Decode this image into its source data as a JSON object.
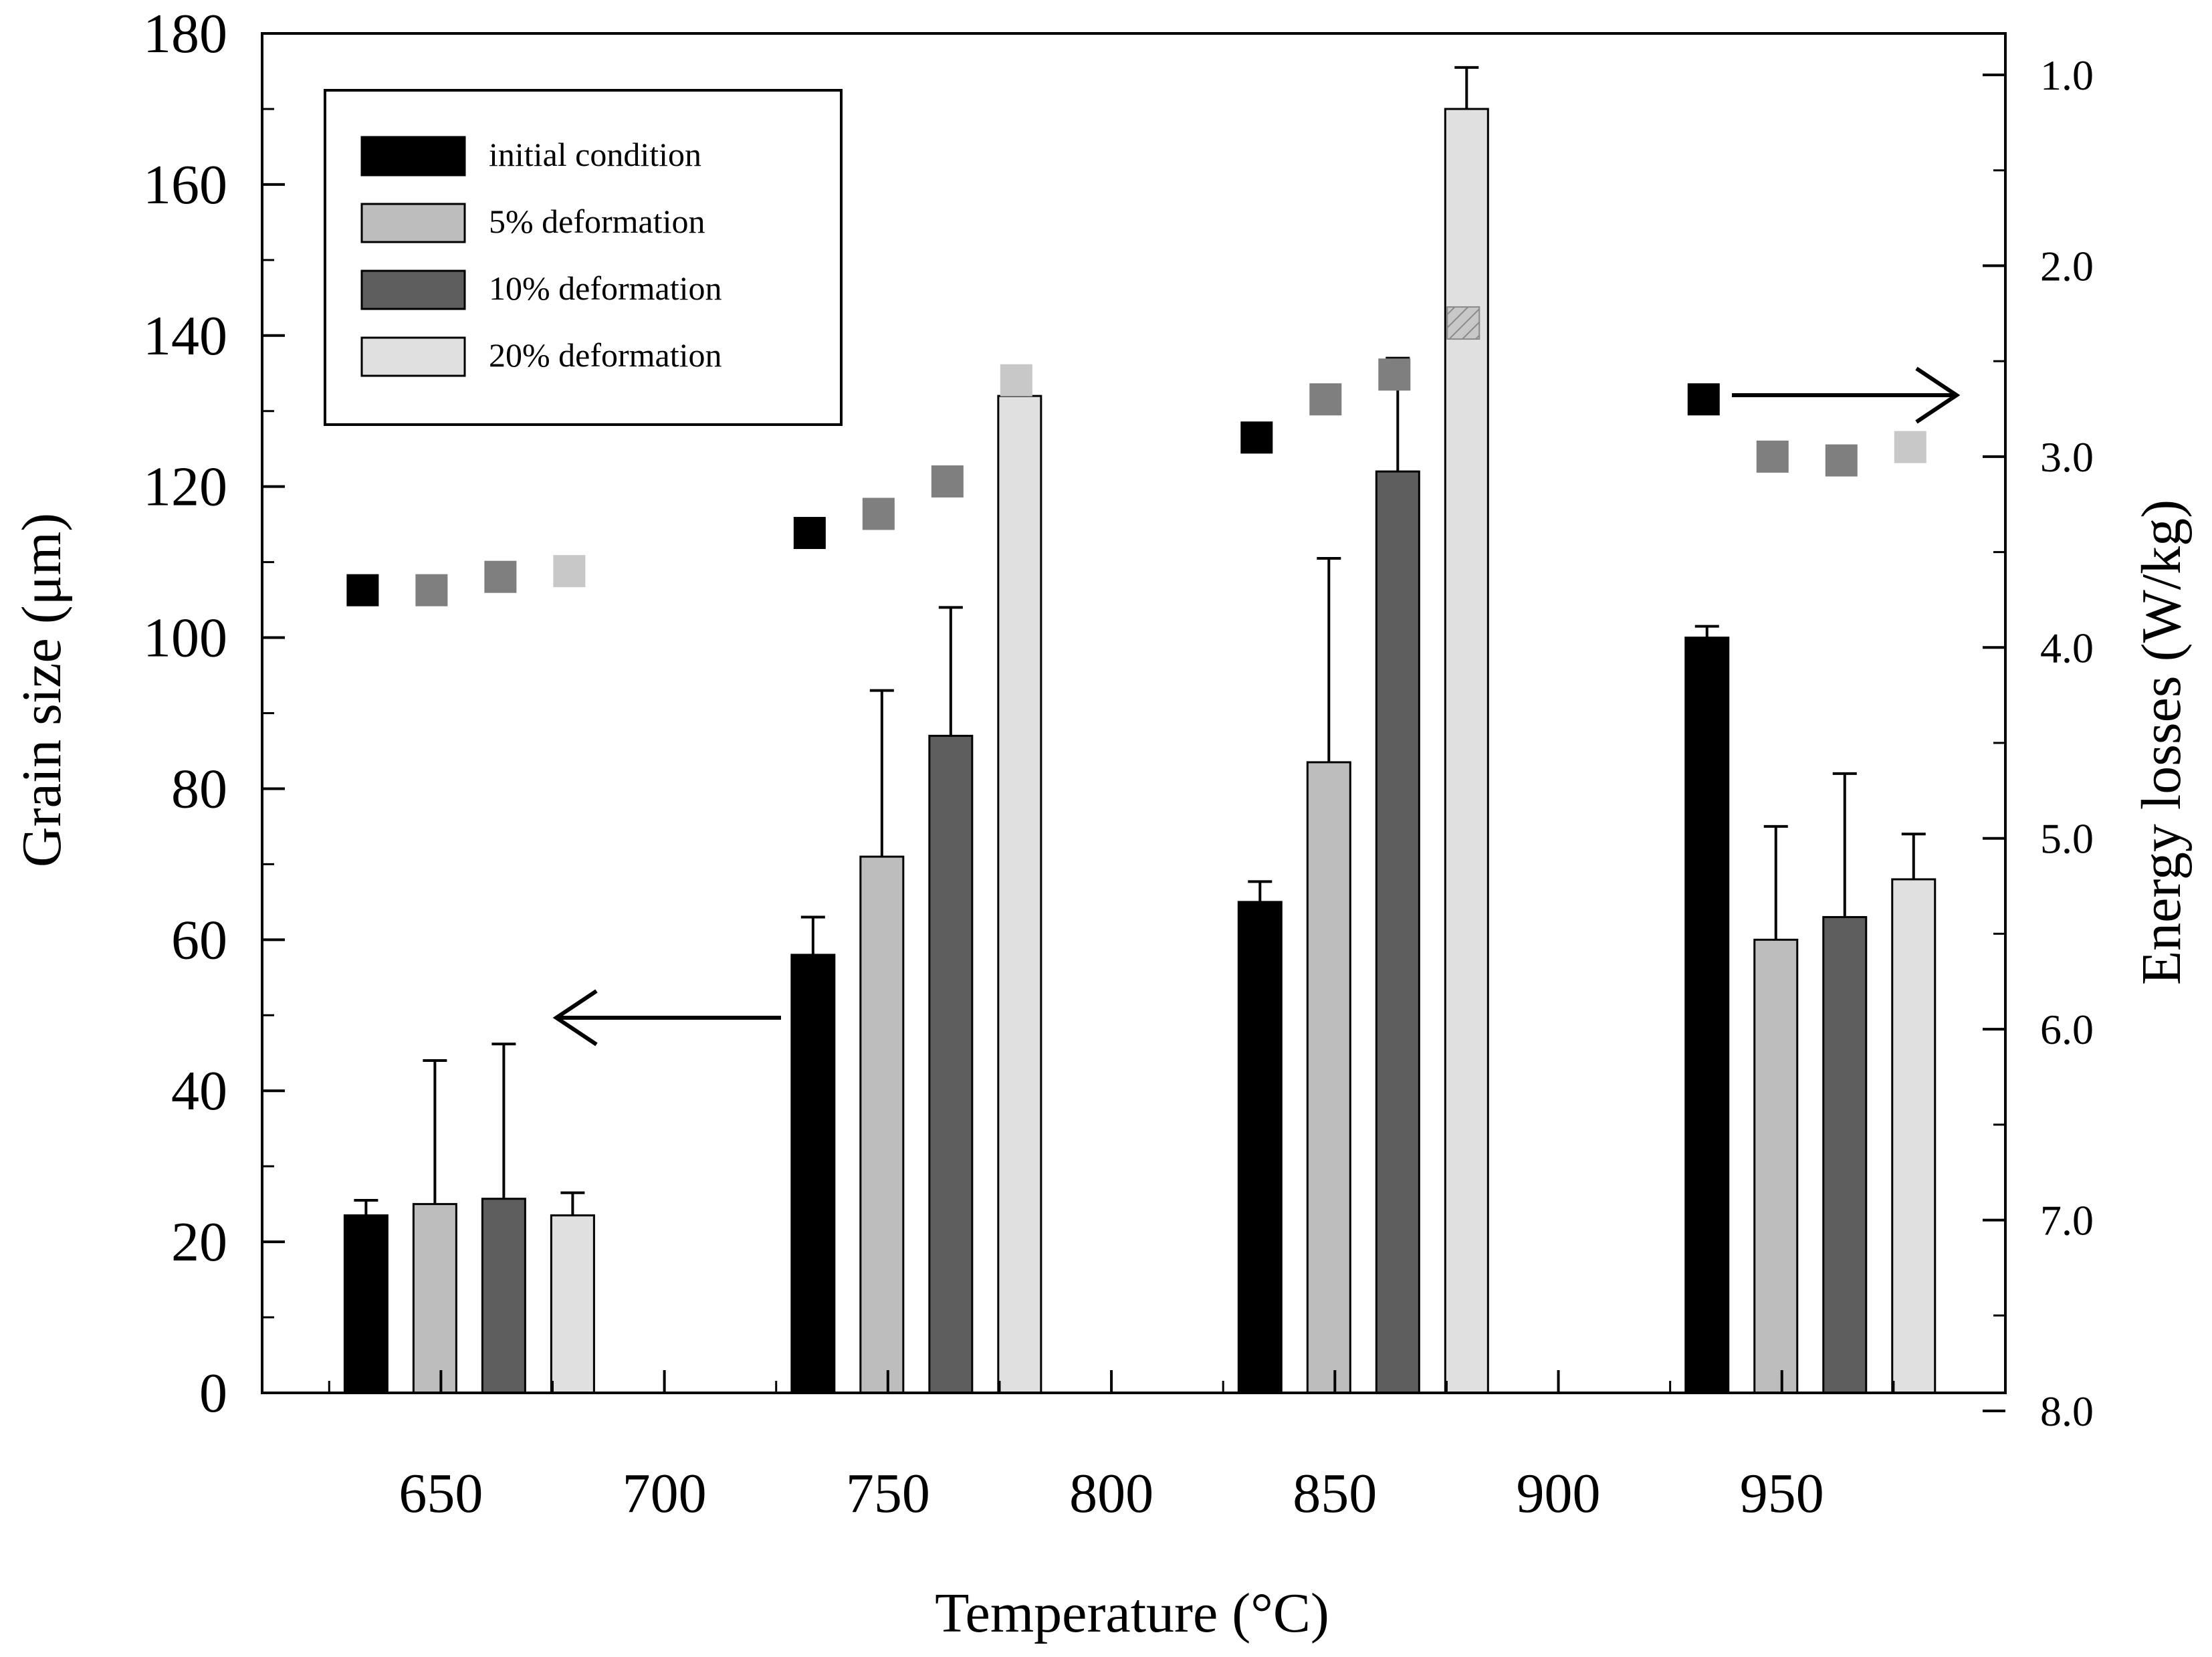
{
  "chart_data": {
    "type": "bar",
    "xlabel": "Temperature (°C)",
    "ylabel": "Grain size (μm)",
    "y2label": "Energy losses (W/kg)",
    "xlim": [
      610,
      1000
    ],
    "ylim": [
      0,
      180
    ],
    "y2lim": [
      1.0,
      8.0
    ],
    "y2_inverted": true,
    "x_ticks": [
      650,
      700,
      750,
      800,
      850,
      900,
      950
    ],
    "y_ticks": [
      0,
      20,
      40,
      60,
      80,
      100,
      120,
      140,
      160,
      180
    ],
    "y2_ticks": [
      "1.0",
      "2.0",
      "3.0",
      "4.0",
      "5.0",
      "6.0",
      "7.0",
      "8.0"
    ],
    "temperatures": [
      650,
      750,
      850,
      950
    ],
    "legend_position": "top-left",
    "series": [
      {
        "name": "initial condition",
        "color": "#000000",
        "values": [
          23.5,
          58,
          65,
          100
        ],
        "errors": [
          2,
          5,
          2.7,
          1.5
        ],
        "energy_losses": [
          3.7,
          3.4,
          2.9,
          2.7
        ],
        "marker_color": "#000000"
      },
      {
        "name": "5% deformation",
        "color": "#bdbdbd",
        "values": [
          25,
          71,
          83.5,
          60
        ],
        "errors": [
          19,
          22,
          27,
          15
        ],
        "energy_losses": [
          3.7,
          3.3,
          2.7,
          3.0
        ],
        "marker_color": "#7f7f7f"
      },
      {
        "name": "10% deformation",
        "color": "#5e5e5e",
        "values": [
          25.7,
          87,
          122,
          63
        ],
        "errors": [
          20.5,
          17,
          15,
          19
        ],
        "energy_losses": [
          3.63,
          3.13,
          2.57,
          3.02
        ],
        "marker_color": "#7f7f7f"
      },
      {
        "name": "20% deformation",
        "color": "#e0e0e0",
        "values": [
          23.5,
          132,
          170,
          68
        ],
        "errors": [
          3,
          4,
          5.5,
          6
        ],
        "energy_losses": [
          3.6,
          2.6,
          2.3,
          2.95
        ],
        "marker_color": "#c8c8c8"
      }
    ],
    "annotations": [
      {
        "text": "",
        "type": "arrow",
        "direction": "left",
        "points_to": "Grain size (μm) axis"
      },
      {
        "text": "",
        "type": "arrow",
        "direction": "right",
        "points_to": "Energy losses (W/kg) axis"
      }
    ]
  }
}
